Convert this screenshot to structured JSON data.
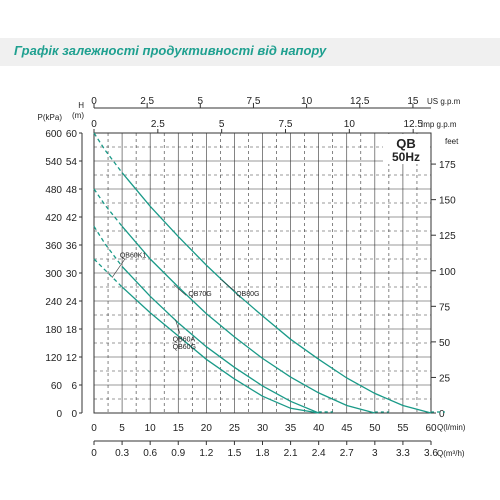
{
  "header": {
    "title": "Графік залежності продуктивності від напору"
  },
  "chart_data": {
    "type": "line",
    "box_title": "QB",
    "box_subtitle": "50Hz",
    "colors": {
      "curve": "#1a9a88",
      "grid": "#333333",
      "banner_text": "#1fa090"
    },
    "axes": {
      "left_kpa": {
        "label": "P(kPa)",
        "ticks": [
          "600",
          "540",
          "480",
          "420",
          "360",
          "300",
          "240",
          "180",
          "120",
          "60",
          "0"
        ]
      },
      "left_m": {
        "label_top": "H",
        "label": "(m)",
        "ticks": [
          "60",
          "54",
          "48",
          "42",
          "36",
          "30",
          "24",
          "18",
          "12",
          "6",
          "0"
        ]
      },
      "right_feet": {
        "label": "feet",
        "ticks": [
          {
            "v": 175,
            "t": "175"
          },
          {
            "v": 150,
            "t": "150"
          },
          {
            "v": 125,
            "t": "125"
          },
          {
            "v": 100,
            "t": "100"
          },
          {
            "v": 75,
            "t": "75"
          },
          {
            "v": 50,
            "t": "50"
          },
          {
            "v": 25,
            "t": "25"
          },
          {
            "v": 0,
            "t": "0"
          }
        ]
      },
      "bottom_lmin": {
        "label": "Q(l/min)",
        "ticks": [
          "0",
          "5",
          "10",
          "15",
          "20",
          "25",
          "30",
          "35",
          "40",
          "45",
          "50",
          "55",
          "60"
        ]
      },
      "bottom_m3h": {
        "label": "Q(m³/h)",
        "ticks": [
          "0",
          "0.3",
          "0.6",
          "0.9",
          "1.2",
          "1.5",
          "1.8",
          "2.1",
          "2.4",
          "2.7",
          "3",
          "3.3",
          "3.6"
        ]
      },
      "top_us": {
        "label": "US g.p.m",
        "ticks": [
          {
            "v": 0,
            "t": "0"
          },
          {
            "v": 2.5,
            "t": "2.5"
          },
          {
            "v": 5,
            "t": "5"
          },
          {
            "v": 7.5,
            "t": "7.5"
          },
          {
            "v": 10,
            "t": "10"
          },
          {
            "v": 12.5,
            "t": "12.5"
          },
          {
            "v": 15,
            "t": "15"
          }
        ]
      },
      "top_imp": {
        "label": "Imp g.p.m",
        "ticks": [
          {
            "v": 0,
            "t": "0"
          },
          {
            "v": 2.5,
            "t": "2.5"
          },
          {
            "v": 5,
            "t": "5"
          },
          {
            "v": 7.5,
            "t": "7.5"
          },
          {
            "v": 10,
            "t": "10"
          },
          {
            "v": 12.5,
            "t": "12.5"
          }
        ]
      }
    },
    "xlim": [
      0,
      60
    ],
    "ylim": [
      0,
      60
    ],
    "series": [
      {
        "name": "QB60K1",
        "points": [
          [
            0,
            33
          ],
          [
            2,
            30.6
          ],
          [
            5,
            27
          ],
          [
            10,
            21.5
          ],
          [
            15,
            16.5
          ],
          [
            20,
            11.5
          ],
          [
            25,
            7.3
          ],
          [
            30,
            3.6
          ],
          [
            35,
            1
          ],
          [
            40,
            0
          ]
        ]
      },
      {
        "name": "QB60A",
        "name2": "QB60G",
        "points": [
          [
            0,
            40
          ],
          [
            2,
            36.2
          ],
          [
            5,
            31.4
          ],
          [
            10,
            25
          ],
          [
            15,
            19.3
          ],
          [
            20,
            14.2
          ],
          [
            25,
            9.8
          ],
          [
            30,
            5.8
          ],
          [
            35,
            2.5
          ],
          [
            40,
            0
          ]
        ]
      },
      {
        "name": "QB70G",
        "points": [
          [
            0,
            48
          ],
          [
            2,
            44.5
          ],
          [
            5,
            40
          ],
          [
            10,
            33
          ],
          [
            15,
            27
          ],
          [
            20,
            21.3
          ],
          [
            25,
            16.3
          ],
          [
            30,
            11.7
          ],
          [
            35,
            7.7
          ],
          [
            40,
            4.3
          ],
          [
            45,
            1.6
          ],
          [
            50,
            0
          ]
        ]
      },
      {
        "name": "QB80G",
        "points": [
          [
            0,
            60
          ],
          [
            2,
            56.3
          ],
          [
            5,
            51.5
          ],
          [
            10,
            44.3
          ],
          [
            15,
            37.8
          ],
          [
            20,
            31.7
          ],
          [
            25,
            26
          ],
          [
            30,
            20.8
          ],
          [
            35,
            15.8
          ],
          [
            40,
            11.5
          ],
          [
            45,
            7.5
          ],
          [
            50,
            4.2
          ],
          [
            55,
            1.6
          ],
          [
            60,
            0
          ]
        ]
      }
    ]
  }
}
